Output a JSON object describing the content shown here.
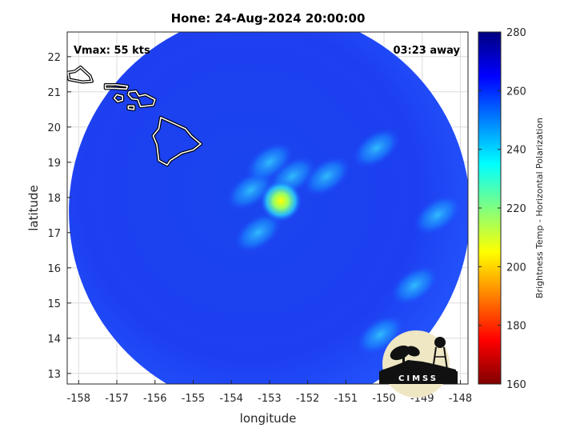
{
  "title": "Hone: 24-Aug-2024 20:00:00",
  "vmax_label": "Vmax: 55 kts",
  "time_label": "03:23 away",
  "map": {
    "lon_range": [
      -158.3,
      -147.8
    ],
    "lat_range": [
      12.7,
      22.7
    ],
    "lon_ticks": [
      -158,
      -157,
      -156,
      -155,
      -154,
      -153,
      -152,
      -151,
      -150,
      -149,
      -148
    ],
    "lat_ticks": [
      13,
      14,
      15,
      16,
      17,
      18,
      19,
      20,
      21,
      22
    ],
    "xlabel": "longitude",
    "ylabel": "latitude",
    "grid": true,
    "swath": {
      "center_lon": -153.0,
      "center_lat": 17.6,
      "radius_deg": 5.7
    },
    "storm_center": {
      "lon": -152.7,
      "lat": 17.9
    },
    "convection_bands": [
      {
        "lon": -153.5,
        "lat": 18.2
      },
      {
        "lon": -153.0,
        "lat": 19.0
      },
      {
        "lon": -152.4,
        "lat": 18.6
      },
      {
        "lon": -153.3,
        "lat": 17.0
      },
      {
        "lon": -151.5,
        "lat": 18.6
      },
      {
        "lon": -150.2,
        "lat": 19.4
      },
      {
        "lon": -148.6,
        "lat": 17.5
      },
      {
        "lon": -149.2,
        "lat": 15.5
      },
      {
        "lon": -150.1,
        "lat": 14.1
      }
    ],
    "islands": [
      {
        "name": "Kauai",
        "points": [
          [
            -159.6,
            22.2
          ],
          [
            -159.45,
            22.22
          ],
          [
            -159.3,
            22.1
          ],
          [
            -159.35,
            21.92
          ],
          [
            -159.6,
            21.9
          ],
          [
            -159.75,
            22.05
          ]
        ]
      },
      {
        "name": "Oahu",
        "points": [
          [
            -158.1,
            21.58
          ],
          [
            -157.95,
            21.7
          ],
          [
            -157.7,
            21.45
          ],
          [
            -157.65,
            21.3
          ],
          [
            -157.9,
            21.28
          ],
          [
            -158.25,
            21.35
          ],
          [
            -158.28,
            21.55
          ]
        ]
      },
      {
        "name": "Molokai",
        "points": [
          [
            -157.3,
            21.2
          ],
          [
            -157.0,
            21.2
          ],
          [
            -156.72,
            21.16
          ],
          [
            -156.75,
            21.08
          ],
          [
            -157.05,
            21.1
          ],
          [
            -157.3,
            21.1
          ]
        ]
      },
      {
        "name": "Lanai",
        "points": [
          [
            -157.0,
            20.92
          ],
          [
            -156.85,
            20.88
          ],
          [
            -156.85,
            20.76
          ],
          [
            -156.98,
            20.72
          ],
          [
            -157.07,
            20.82
          ]
        ]
      },
      {
        "name": "Maui",
        "points": [
          [
            -156.68,
            21.0
          ],
          [
            -156.5,
            21.02
          ],
          [
            -156.42,
            20.88
          ],
          [
            -156.25,
            20.92
          ],
          [
            -156.0,
            20.78
          ],
          [
            -156.05,
            20.62
          ],
          [
            -156.38,
            20.58
          ],
          [
            -156.45,
            20.78
          ],
          [
            -156.6,
            20.8
          ],
          [
            -156.7,
            20.92
          ]
        ]
      },
      {
        "name": "Kahoolawe",
        "points": [
          [
            -156.7,
            20.6
          ],
          [
            -156.55,
            20.6
          ],
          [
            -156.55,
            20.5
          ],
          [
            -156.7,
            20.52
          ]
        ]
      },
      {
        "name": "Hawaii",
        "points": [
          [
            -155.85,
            20.27
          ],
          [
            -155.6,
            20.15
          ],
          [
            -155.2,
            19.95
          ],
          [
            -155.05,
            19.75
          ],
          [
            -154.8,
            19.52
          ],
          [
            -155.0,
            19.35
          ],
          [
            -155.3,
            19.26
          ],
          [
            -155.6,
            19.05
          ],
          [
            -155.68,
            18.92
          ],
          [
            -155.9,
            19.05
          ],
          [
            -155.95,
            19.5
          ],
          [
            -156.05,
            19.75
          ],
          [
            -155.9,
            19.95
          ]
        ]
      }
    ]
  },
  "colorbar": {
    "label": "Brightness Temp - Horizontal Polarization",
    "min": 160,
    "max": 280,
    "ticks": [
      160,
      180,
      200,
      220,
      240,
      260,
      280
    ],
    "colormap": [
      "#800000",
      "#ff0000",
      "#ff8000",
      "#ffff00",
      "#80ff80",
      "#00ffff",
      "#0080ff",
      "#0000ff",
      "#000080"
    ]
  },
  "logo": {
    "text": "CIMSS"
  }
}
